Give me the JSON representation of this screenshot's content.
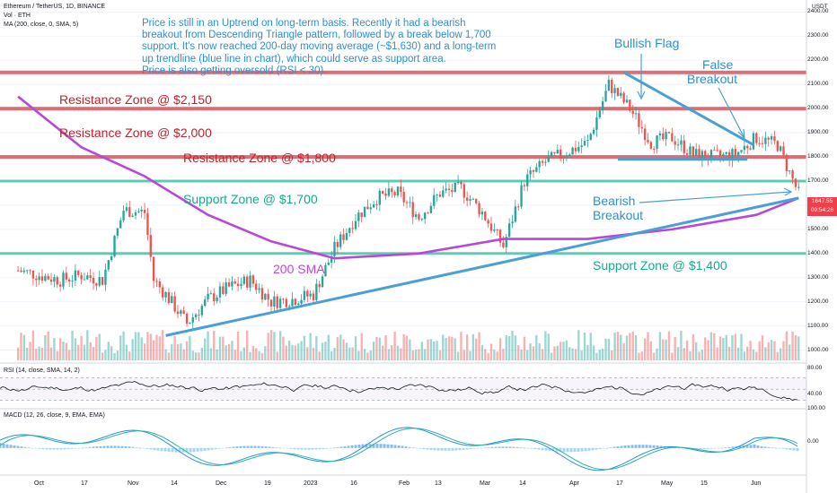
{
  "header": {
    "symbol": "Ethereum / TetherUS, 1D, BINANCE",
    "vol": "Vol · ETH",
    "ma": "MA (200, close, 0, SMA, 5)",
    "currency": "USDT"
  },
  "annotation": {
    "line1": "Price is still in an Uptrend on long-term basis. Recently it had a bearish",
    "line2": "breakout from Descending Triangle pattern, followed by a break below 1,700",
    "line3": "support. It's now reached 200-day moving average (~$1,630) and a long-term",
    "line4": "up trendline (blue line in chart), which could serve as support area.",
    "line5": "Price is also getting oversold (RSI < 30)."
  },
  "zones": {
    "r2150": "Resistance Zone @ $2,150",
    "r2000": "Resistance Zone @ $2,000",
    "r1800": "Resistance Zone @ $1,800",
    "s1700": "Support Zone @ $1,700",
    "s1400": "Support Zone @ $1,400",
    "sma": "200 SMA",
    "bull_flag": "Bullish Flag",
    "false_bo_1": "False",
    "false_bo_2": "Breakout",
    "bear_bo_1": "Bearish",
    "bear_bo_2": "Breakout"
  },
  "price_axis": [
    "2400.00",
    "2300.00",
    "2200.00",
    "2100.00",
    "2000.00",
    "1900.00",
    "1800.00",
    "1700.00",
    "1600.00",
    "1500.00",
    "1400.00",
    "1300.00",
    "1200.00",
    "1100.00",
    "1000.00"
  ],
  "current_price": {
    "value": "1647.55",
    "countdown": "09:54:26"
  },
  "rsi": {
    "label": "RSI (14, close, SMA, 14, 2)",
    "ticks": [
      "80.00",
      "40.00"
    ]
  },
  "macd": {
    "label": "MACD (12, 26, close, 9, EMA, EMA)",
    "ticks": [
      "100.00",
      "0.00"
    ]
  },
  "time_axis": [
    "Oct",
    "17",
    "Nov",
    "14",
    "Dec",
    "19",
    "2023",
    "16",
    "Feb",
    "13",
    "Mar",
    "14",
    "Apr",
    "17",
    "May",
    "15",
    "Jun"
  ],
  "colors": {
    "up": "#26a69a",
    "down": "#ef5350",
    "sma": "#b948d6",
    "trend": "#4a9fd6",
    "resistance": "#d9545c",
    "support": "#3fc4a6",
    "rsi": "#131722",
    "macd_line": "#2a8fd9",
    "signal_line": "#2bb5a1"
  },
  "chart_data": {
    "type": "candlestick",
    "title": "Ethereum / TetherUS, 1D, BINANCE",
    "ylim": [
      950,
      2450
    ],
    "price_close": [
      [
        "2022-09-26",
        1330
      ],
      [
        "2022-10-10",
        1290
      ],
      [
        "2022-10-17",
        1310
      ],
      [
        "2022-10-24",
        1290
      ],
      [
        "2022-10-31",
        1580
      ],
      [
        "2022-11-07",
        1570
      ],
      [
        "2022-11-10",
        1290
      ],
      [
        "2022-11-14",
        1230
      ],
      [
        "2022-11-21",
        1110
      ],
      [
        "2022-11-28",
        1210
      ],
      [
        "2022-12-05",
        1260
      ],
      [
        "2022-12-12",
        1290
      ],
      [
        "2022-12-19",
        1200
      ],
      [
        "2022-12-26",
        1210
      ],
      [
        "2023-01-02",
        1230
      ],
      [
        "2023-01-09",
        1420
      ],
      [
        "2023-01-16",
        1550
      ],
      [
        "2023-01-23",
        1630
      ],
      [
        "2023-01-30",
        1650
      ],
      [
        "2023-02-06",
        1550
      ],
      [
        "2023-02-13",
        1650
      ],
      [
        "2023-02-20",
        1670
      ],
      [
        "2023-02-27",
        1570
      ],
      [
        "2023-03-06",
        1430
      ],
      [
        "2023-03-13",
        1700
      ],
      [
        "2023-03-20",
        1780
      ],
      [
        "2023-03-27",
        1820
      ],
      [
        "2023-04-03",
        1860
      ],
      [
        "2023-04-10",
        2100
      ],
      [
        "2023-04-17",
        2000
      ],
      [
        "2023-04-24",
        1860
      ],
      [
        "2023-05-01",
        1880
      ],
      [
        "2023-05-08",
        1810
      ],
      [
        "2023-05-15",
        1800
      ],
      [
        "2023-05-22",
        1810
      ],
      [
        "2023-05-29",
        1880
      ],
      [
        "2023-06-05",
        1850
      ],
      [
        "2023-06-12",
        1647.55
      ]
    ],
    "sma200": [
      [
        "2022-09-26",
        2050
      ],
      [
        "2022-10-17",
        1840
      ],
      [
        "2022-11-07",
        1720
      ],
      [
        "2022-11-28",
        1560
      ],
      [
        "2022-12-19",
        1450
      ],
      [
        "2023-01-09",
        1380
      ],
      [
        "2023-02-06",
        1400
      ],
      [
        "2023-03-06",
        1460
      ],
      [
        "2023-04-03",
        1460
      ],
      [
        "2023-05-01",
        1500
      ],
      [
        "2023-05-29",
        1560
      ],
      [
        "2023-06-12",
        1630
      ]
    ],
    "trendline": [
      [
        "2022-11-14",
        1060
      ],
      [
        "2023-06-12",
        1630
      ]
    ],
    "levels": {
      "resistance": [
        2150,
        2000,
        1800
      ],
      "support": [
        1700,
        1400
      ]
    },
    "rsi_range": [
      20,
      90
    ],
    "macd_range": [
      -80,
      120
    ]
  }
}
